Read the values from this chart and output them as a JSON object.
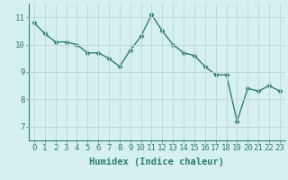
{
  "x": [
    0,
    1,
    2,
    3,
    4,
    5,
    6,
    7,
    8,
    9,
    10,
    11,
    12,
    13,
    14,
    15,
    16,
    17,
    18,
    19,
    20,
    21,
    22,
    23
  ],
  "y": [
    10.8,
    10.4,
    10.1,
    10.1,
    10.0,
    9.7,
    9.7,
    9.5,
    9.2,
    9.8,
    10.3,
    11.1,
    10.5,
    10.0,
    9.7,
    9.6,
    9.2,
    8.9,
    8.9,
    7.2,
    8.4,
    8.3,
    8.5,
    8.3
  ],
  "line_color": "#2e7d6e",
  "marker": "D",
  "marker_size": 2.5,
  "bg_color": "#d6f0f0",
  "grid_color": "#c0d8d8",
  "xlabel": "Humidex (Indice chaleur)",
  "ylim": [
    6.5,
    11.5
  ],
  "xlim": [
    -0.5,
    23.5
  ],
  "yticks": [
    7,
    8,
    9,
    10,
    11
  ],
  "xticks": [
    0,
    1,
    2,
    3,
    4,
    5,
    6,
    7,
    8,
    9,
    10,
    11,
    12,
    13,
    14,
    15,
    16,
    17,
    18,
    19,
    20,
    21,
    22,
    23
  ],
  "tick_fontsize": 6.5,
  "xlabel_fontsize": 7.5,
  "linewidth": 1.0
}
